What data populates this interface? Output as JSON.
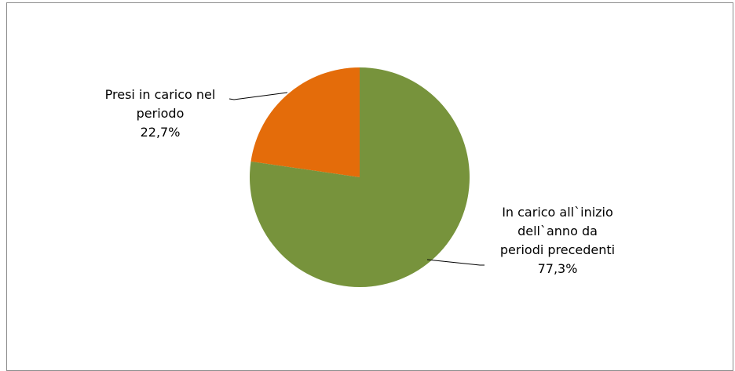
{
  "page_header_text": "",
  "colors": {
    "slice_0": "#e46c0a",
    "slice_1": "#77933c",
    "leader": "#000000"
  },
  "chart_data": {
    "type": "pie",
    "title": "",
    "start_angle_deg": 0,
    "direction": "counterclockwise",
    "slices": [
      {
        "label_lines": [
          "Presi in carico nel",
          "periodo",
          "22,7%"
        ],
        "value": 22.7,
        "color": "#e46c0a"
      },
      {
        "label_lines": [
          "In carico all`inizio",
          "dell`anno da",
          "periodi precedenti",
          "77,3%"
        ],
        "value": 77.3,
        "color": "#77933c"
      }
    ],
    "legend": "none"
  }
}
